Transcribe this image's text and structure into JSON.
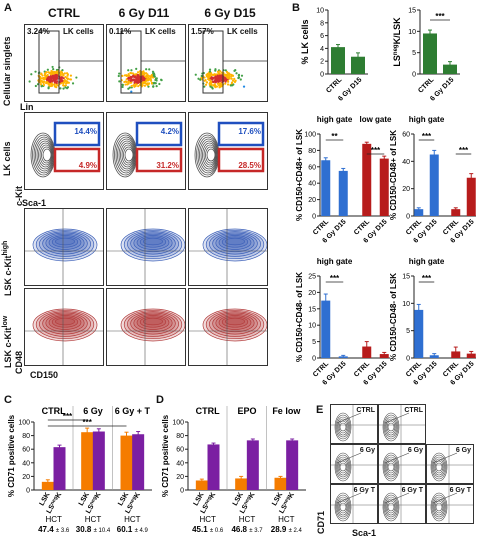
{
  "panelA": {
    "letter": "A",
    "columns": [
      "CTRL",
      "6 Gy D11",
      "6 Gy D15"
    ],
    "row1": {
      "ylabel": "Cellular singlets",
      "xlabel": "Lin",
      "gate": "LK cells",
      "pcts": [
        "3.24%",
        "0.11%",
        "1.57%"
      ]
    },
    "row2": {
      "ylabel": "LK cells",
      "xlabel": "Sca-1",
      "yaxis": "c-Kit",
      "high": [
        "14.4%",
        "4.2%",
        "17.6%"
      ],
      "low": [
        "4.9%",
        "31.2%",
        "28.5%"
      ]
    },
    "row3": {
      "ylabel": "LSK c-Kit",
      "ysup": "high"
    },
    "row4": {
      "ylabel": "LSK c-Kit",
      "ysup": "low",
      "yaxis": "CD48",
      "xlabel": "CD150"
    }
  },
  "panelB": {
    "letter": "B",
    "high_gate": "high gate",
    "low_gate": "low gate",
    "categories": [
      "CTRL",
      "6 Gy D15"
    ],
    "sig": "***",
    "sig2": "**"
  },
  "panelC": {
    "letter": "C",
    "groups": [
      "CTRL",
      "6 Gy",
      "6 Gy + T"
    ],
    "ylabel": "% CD71 positive cells",
    "bar_labels": [
      "LSK",
      "LS",
      "K"
    ],
    "neg": "neg",
    "hct_label": "HCT",
    "hct": [
      "47.4",
      "30.8",
      "60.1"
    ],
    "hct_sd": [
      "± 3.6",
      "± 10.4",
      "± 4.9"
    ],
    "sig": "***"
  },
  "panelD": {
    "letter": "D",
    "groups": [
      "CTRL",
      "EPO",
      "Fe low"
    ],
    "ylabel": "% CD71 positive cells",
    "hct_label": "HCT",
    "hct": [
      "45.1",
      "46.8",
      "28.9"
    ],
    "hct_sd": [
      "± 0.6",
      "± 3.7",
      "± 2.4"
    ]
  },
  "panelE": {
    "letter": "E",
    "labels": [
      "CTRL",
      "CTRL",
      "6 Gy",
      "6 Gy",
      "6 Gy",
      "6 Gy T",
      "6 Gy T",
      "6 Gy T"
    ],
    "yaxis": "CD71",
    "xaxis": "Sca-1"
  },
  "chart_data": [
    {
      "type": "bar",
      "title": "",
      "ylabel": "% LK cells",
      "categories": [
        "CTRL",
        "6 Gy D15"
      ],
      "values": [
        4.2,
        2.7
      ],
      "errors": [
        0.4,
        0.6
      ],
      "ylim": [
        0,
        10
      ],
      "yticks": [
        0,
        2,
        4,
        6,
        8,
        10
      ],
      "color": "#2e7d32"
    },
    {
      "type": "bar",
      "title": "",
      "ylabel": "LS",
      "ysup": "neg",
      "ylabel_suffix": "K/LSK",
      "categories": [
        "CTRL",
        "6 Gy D15"
      ],
      "values": [
        9.5,
        2.2
      ],
      "errors": [
        0.8,
        0.7
      ],
      "ylim": [
        0,
        15
      ],
      "yticks": [
        0,
        5,
        10,
        15
      ],
      "color": "#2e7d32"
    },
    {
      "type": "bar",
      "ylabel": "% CD150+CD48+ of LSK",
      "categories": [
        "CTRL",
        "6 Gy D15",
        "CTRL",
        "6 Gy D15"
      ],
      "values": [
        68,
        55,
        88,
        70
      ],
      "errors": [
        3,
        3,
        2,
        3
      ],
      "ylim": [
        0,
        100
      ],
      "yticks": [
        0,
        20,
        40,
        60,
        80,
        100
      ],
      "colors": [
        "#2f6fd1",
        "#2f6fd1",
        "#b71c1c",
        "#b71c1c"
      ]
    },
    {
      "type": "bar",
      "ylabel": "% CD150-CD48+ of LSK",
      "categories": [
        "CTRL",
        "6 Gy D15",
        "CTRL",
        "6 Gy D15"
      ],
      "values": [
        5,
        45,
        5,
        28
      ],
      "errors": [
        1,
        3,
        1,
        3
      ],
      "ylim": [
        0,
        60
      ],
      "yticks": [
        0,
        20,
        40,
        60
      ],
      "colors": [
        "#2f6fd1",
        "#2f6fd1",
        "#b71c1c",
        "#b71c1c"
      ]
    },
    {
      "type": "bar",
      "ylabel": "% CD150+CD48- of LSK",
      "categories": [
        "CTRL",
        "6 Gy D15",
        "CTRL",
        "6 Gy D15"
      ],
      "values": [
        17.5,
        0.5,
        3.5,
        1.2
      ],
      "errors": [
        2,
        0.3,
        1.5,
        0.5
      ],
      "ylim": [
        0,
        25
      ],
      "yticks": [
        0,
        5,
        10,
        15,
        20,
        25
      ],
      "colors": [
        "#2f6fd1",
        "#2f6fd1",
        "#b71c1c",
        "#b71c1c"
      ]
    },
    {
      "type": "bar",
      "ylabel": "% CD150-CD48- of LSK",
      "categories": [
        "CTRL",
        "6 Gy D15",
        "CTRL",
        "6 Gy D15"
      ],
      "values": [
        8.8,
        0.5,
        1.2,
        0.8
      ],
      "errors": [
        1,
        0.3,
        0.8,
        0.4
      ],
      "ylim": [
        0,
        15
      ],
      "yticks": [
        0,
        5,
        10,
        15
      ],
      "colors": [
        "#2f6fd1",
        "#2f6fd1",
        "#b71c1c",
        "#b71c1c"
      ]
    },
    {
      "type": "bar",
      "ylabel": "% CD71 positive cells",
      "categories": [
        "CTRL LSK",
        "CTRL LSnegK",
        "6 Gy LSK",
        "6 Gy LSnegK",
        "6 Gy + T LSK",
        "6 Gy + T LSnegK"
      ],
      "values": [
        12,
        63,
        85,
        86,
        80,
        82
      ],
      "errors": [
        3,
        3,
        6,
        4,
        5,
        4
      ],
      "ylim": [
        0,
        100
      ],
      "yticks": [
        0,
        20,
        40,
        60,
        80,
        100
      ],
      "colors": [
        "#f57c00",
        "#7b1fa2",
        "#f57c00",
        "#7b1fa2",
        "#f57c00",
        "#7b1fa2"
      ]
    },
    {
      "type": "bar",
      "ylabel": "% CD71 positive cells",
      "categories": [
        "CTRL LSK",
        "CTRL LSnegK",
        "EPO LSK",
        "EPO LSnegK",
        "Fe low LSK",
        "Fe low LSnegK"
      ],
      "values": [
        14,
        67,
        17,
        73,
        18,
        73
      ],
      "errors": [
        2,
        2,
        3,
        2,
        2,
        2
      ],
      "ylim": [
        0,
        100
      ],
      "yticks": [
        0,
        20,
        40,
        60,
        80,
        100
      ],
      "colors": [
        "#f57c00",
        "#7b1fa2",
        "#f57c00",
        "#7b1fa2",
        "#f57c00",
        "#7b1fa2"
      ]
    }
  ]
}
